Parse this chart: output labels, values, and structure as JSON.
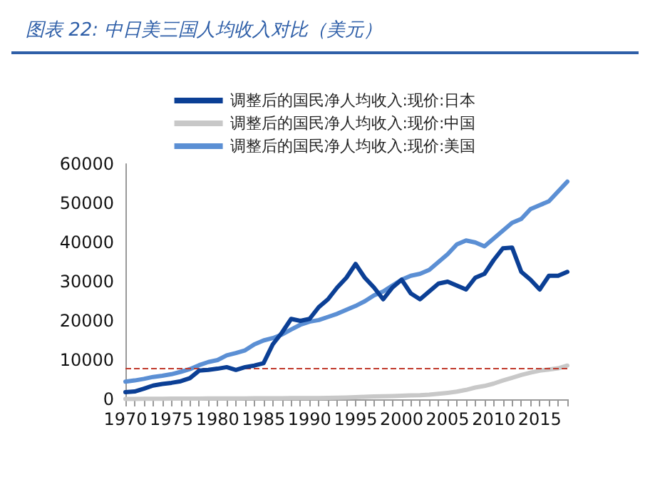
{
  "chart_data": {
    "type": "line",
    "title": "图表 22: 中日美三国人均收入对比（美元）",
    "categories": [
      "1970",
      null,
      null,
      null,
      null,
      "1975",
      null,
      null,
      null,
      null,
      "1980",
      null,
      null,
      null,
      null,
      "1985",
      null,
      null,
      null,
      null,
      "1990",
      null,
      null,
      null,
      null,
      "1995",
      null,
      null,
      null,
      null,
      "2000",
      null,
      null,
      null,
      null,
      "2005",
      null,
      null,
      null,
      null,
      "2010",
      null,
      null,
      null,
      null,
      "2015",
      null,
      null,
      null
    ],
    "series": [
      {
        "name": "调整后的国民净人均收入:现价:日本",
        "color": "#0b3f95",
        "values": [
          1800,
          2000,
          2700,
          3500,
          3900,
          4200,
          4600,
          5400,
          7300,
          7500,
          7800,
          8200,
          7500,
          8200,
          8600,
          9200,
          14000,
          17000,
          20500,
          20000,
          20500,
          23500,
          25500,
          28500,
          31000,
          34500,
          31000,
          28500,
          25500,
          28500,
          30500,
          27000,
          25500,
          27500,
          29500,
          30000,
          29000,
          28000,
          31000,
          32000,
          35500,
          38500,
          38700,
          32500,
          30500,
          28000,
          31500,
          31500,
          32500
        ]
      },
      {
        "name": "调整后的国民净人均收入:现价:中国",
        "color": "#c8c8c8",
        "values": [
          100,
          110,
          120,
          130,
          150,
          160,
          160,
          180,
          200,
          220,
          220,
          220,
          230,
          250,
          260,
          280,
          280,
          290,
          320,
          340,
          330,
          340,
          380,
          420,
          460,
          530,
          630,
          730,
          790,
          830,
          900,
          980,
          1060,
          1200,
          1400,
          1650,
          1950,
          2400,
          3000,
          3400,
          4000,
          4800,
          5500,
          6200,
          6800,
          7300,
          7600,
          7900,
          8600
        ]
      },
      {
        "name": "调整后的国民净人均收入:现价:美国",
        "color": "#5b8fd4",
        "values": [
          4500,
          4800,
          5200,
          5700,
          6000,
          6400,
          7000,
          7700,
          8700,
          9500,
          10000,
          11200,
          11800,
          12500,
          14000,
          15000,
          15600,
          16500,
          17800,
          19000,
          19800,
          20200,
          21000,
          21800,
          22800,
          23800,
          25000,
          26500,
          27500,
          29000,
          30500,
          31500,
          32000,
          33000,
          35000,
          37000,
          39500,
          40500,
          40000,
          39000,
          41000,
          43000,
          45000,
          46000,
          48500,
          49500,
          50500,
          53000,
          55500
        ]
      }
    ],
    "ylim": [
      0,
      60000
    ],
    "yticks": [
      0,
      10000,
      20000,
      30000,
      40000,
      50000,
      60000
    ],
    "ref_lines": [
      {
        "axis": "y",
        "value": 7900,
        "color": "#c0392b",
        "line_style": "dashed"
      }
    ],
    "legend": "top",
    "grid": false,
    "marker": "none",
    "line_style": "solid"
  }
}
